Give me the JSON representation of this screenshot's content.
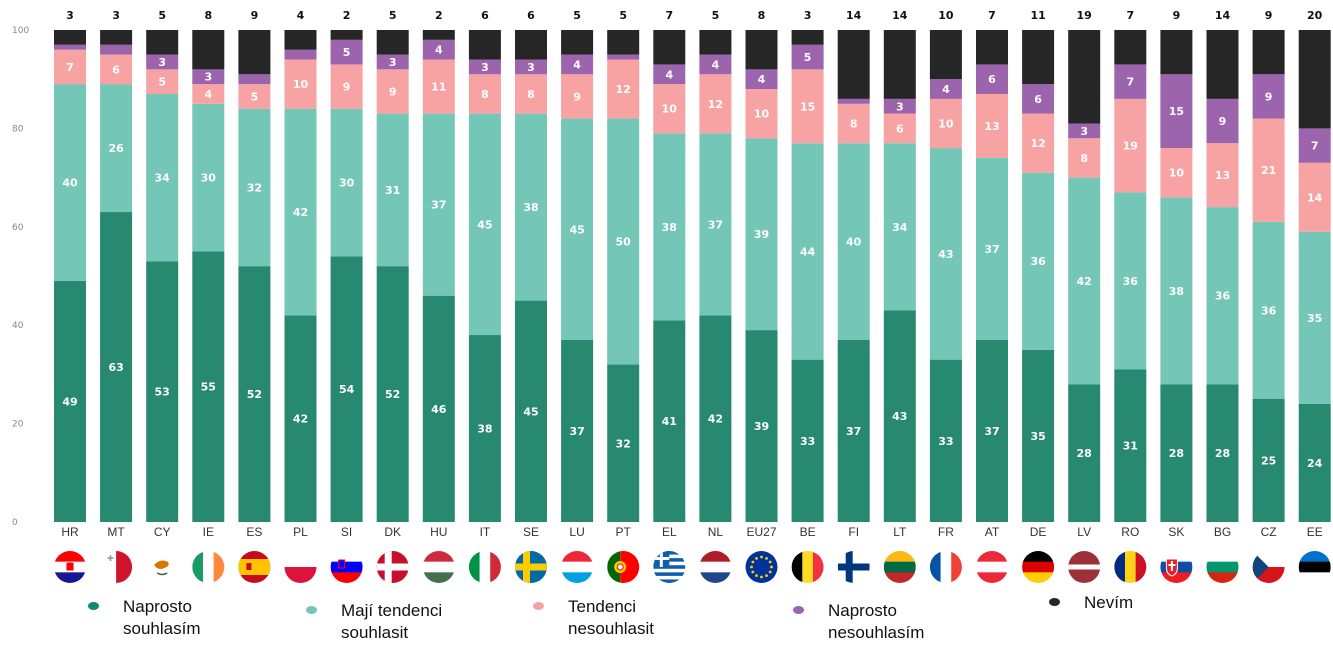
{
  "chart_data": {
    "type": "bar",
    "stacked": true,
    "ylim": [
      0,
      100
    ],
    "yticks": [
      0,
      20,
      40,
      60,
      80,
      100
    ],
    "categories": [
      "HR",
      "MT",
      "CY",
      "IE",
      "ES",
      "PL",
      "SI",
      "DK",
      "HU",
      "IT",
      "SE",
      "LU",
      "PT",
      "EL",
      "NL",
      "EU27",
      "BE",
      "FI",
      "LT",
      "FR",
      "AT",
      "DE",
      "LV",
      "RO",
      "SK",
      "BG",
      "CZ",
      "EE"
    ],
    "series": [
      {
        "name": "Naprosto souhlasím",
        "color": "#27896f",
        "values": [
          49,
          63,
          53,
          55,
          52,
          42,
          54,
          52,
          46,
          38,
          45,
          37,
          32,
          41,
          42,
          39,
          33,
          37,
          43,
          33,
          37,
          35,
          28,
          31,
          28,
          28,
          25,
          24
        ]
      },
      {
        "name": "Mají tendenci souhlasit",
        "color": "#74c6b6",
        "values": [
          40,
          26,
          34,
          30,
          32,
          42,
          30,
          31,
          37,
          45,
          38,
          45,
          50,
          38,
          37,
          39,
          44,
          40,
          34,
          43,
          37,
          36,
          42,
          36,
          38,
          36,
          36,
          35
        ]
      },
      {
        "name": "Tendenci nesouhlasit",
        "color": "#f7a3a3",
        "values": [
          7,
          6,
          5,
          4,
          5,
          10,
          9,
          9,
          11,
          8,
          8,
          9,
          12,
          10,
          12,
          10,
          15,
          8,
          6,
          10,
          13,
          12,
          8,
          19,
          10,
          13,
          21,
          14
        ]
      },
      {
        "name": "Naprosto nesouhlasím",
        "color": "#9c64ad",
        "values": [
          1,
          2,
          3,
          3,
          2,
          2,
          5,
          3,
          4,
          3,
          3,
          4,
          1,
          4,
          4,
          4,
          5,
          1,
          3,
          4,
          6,
          6,
          3,
          7,
          15,
          9,
          9,
          7
        ]
      },
      {
        "name": "Nevím",
        "color": "#262626",
        "values": [
          3,
          3,
          5,
          8,
          9,
          4,
          2,
          5,
          2,
          6,
          6,
          5,
          5,
          7,
          5,
          8,
          3,
          14,
          14,
          10,
          7,
          11,
          19,
          7,
          9,
          14,
          9,
          20
        ]
      }
    ],
    "segment_label_shown": [
      [
        true,
        true,
        true,
        true,
        true
      ],
      [
        true,
        true,
        true,
        false,
        true
      ],
      [
        true,
        true,
        true,
        true,
        true
      ],
      [
        true,
        true,
        true,
        true,
        true
      ],
      [
        true,
        true,
        true,
        false,
        true
      ],
      [
        true,
        true,
        true,
        false,
        true
      ],
      [
        true,
        true,
        true,
        true,
        true
      ],
      [
        true,
        true,
        true,
        true,
        true
      ],
      [
        true,
        true,
        true,
        true,
        true
      ],
      [
        true,
        true,
        true,
        true,
        true
      ],
      [
        true,
        true,
        true,
        true,
        true
      ],
      [
        true,
        true,
        true,
        true,
        true
      ],
      [
        true,
        true,
        true,
        false,
        true
      ],
      [
        true,
        true,
        true,
        true,
        true
      ],
      [
        true,
        true,
        true,
        true,
        true
      ],
      [
        true,
        true,
        true,
        true,
        true
      ],
      [
        true,
        true,
        true,
        true,
        true
      ],
      [
        true,
        true,
        true,
        false,
        true
      ],
      [
        true,
        true,
        true,
        true,
        true
      ],
      [
        true,
        true,
        true,
        true,
        true
      ],
      [
        true,
        true,
        true,
        true,
        true
      ],
      [
        true,
        true,
        true,
        true,
        true
      ],
      [
        true,
        true,
        true,
        true,
        true
      ],
      [
        true,
        true,
        true,
        true,
        true
      ],
      [
        true,
        true,
        true,
        true,
        true
      ],
      [
        true,
        true,
        true,
        true,
        true
      ],
      [
        true,
        true,
        true,
        true,
        true
      ],
      [
        true,
        true,
        true,
        true,
        true
      ]
    ],
    "legend_position": "bottom",
    "grid": false
  },
  "legend": [
    {
      "line1": "Naprosto",
      "line2": "souhlasím",
      "color": "#0f8a6e"
    },
    {
      "line1": "Mají tendenci",
      "line2": "souhlasit",
      "color": "#74c6b6"
    },
    {
      "line1": "Tendenci",
      "line2": "nesouhlasit",
      "color": "#f7a3a3"
    },
    {
      "line1": "Naprosto",
      "line2": "nesouhlasím",
      "color": "#9c64ad"
    },
    {
      "line1": "Nevím",
      "line2": "",
      "color": "#262626"
    }
  ],
  "flags": [
    "croatia-flag-icon",
    "malta-flag-icon",
    "cyprus-flag-icon",
    "ireland-flag-icon",
    "spain-flag-icon",
    "poland-flag-icon",
    "slovenia-flag-icon",
    "denmark-flag-icon",
    "hungary-flag-icon",
    "italy-flag-icon",
    "sweden-flag-icon",
    "luxembourg-flag-icon",
    "portugal-flag-icon",
    "greece-flag-icon",
    "netherlands-flag-icon",
    "eu-flag-icon",
    "belgium-flag-icon",
    "finland-flag-icon",
    "lithuania-flag-icon",
    "france-flag-icon",
    "austria-flag-icon",
    "germany-flag-icon",
    "latvia-flag-icon",
    "romania-flag-icon",
    "slovakia-flag-icon",
    "bulgaria-flag-icon",
    "czechia-flag-icon",
    "estonia-flag-icon"
  ]
}
